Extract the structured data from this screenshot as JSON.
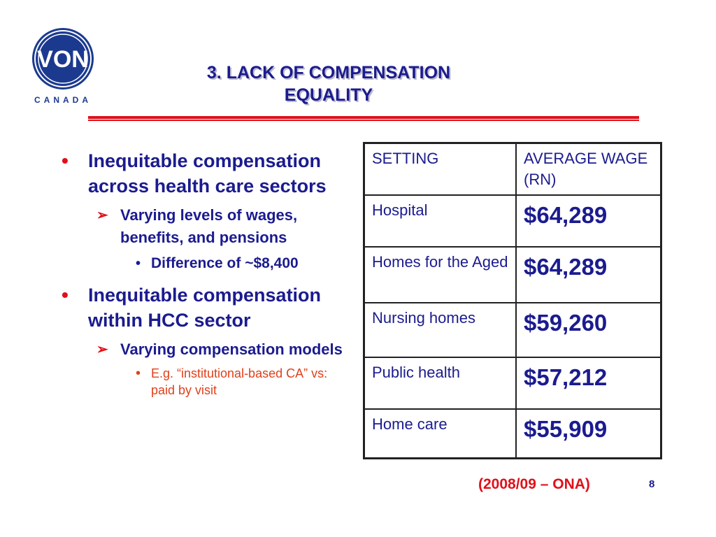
{
  "logo": {
    "mark": "VON",
    "sub": "CANADA",
    "colors": {
      "blue": "#1b3a8f",
      "accent": "#e0101a"
    }
  },
  "title": {
    "line1": "3. LACK OF COMPENSATION",
    "line2": "EQUALITY"
  },
  "bullets": [
    {
      "text": "Inequitable compensation across health care sectors",
      "sub": [
        {
          "text": "Varying levels of wages, benefits, and pensions",
          "sub": [
            {
              "text": "Difference of ~$8,400"
            }
          ]
        }
      ]
    },
    {
      "text": "Inequitable compensation within HCC sector",
      "sub": [
        {
          "text": "Varying compensation models",
          "sub": [
            {
              "text": "E.g. “institutional-based CA” vs: paid by visit"
            }
          ]
        }
      ]
    }
  ],
  "table": {
    "headers": [
      "SETTING",
      "AVERAGE WAGE (RN)"
    ],
    "rows": [
      {
        "setting": "Hospital",
        "wage": "$64,289"
      },
      {
        "setting": "Homes for the Aged",
        "wage": "$64,289"
      },
      {
        "setting": "Nursing homes",
        "wage": "$59,260"
      },
      {
        "setting": "Public health",
        "wage": "$57,212"
      },
      {
        "setting": "Home care",
        "wage": "$55,909"
      }
    ]
  },
  "source": "(2008/09 – ONA)",
  "page_number": "8"
}
